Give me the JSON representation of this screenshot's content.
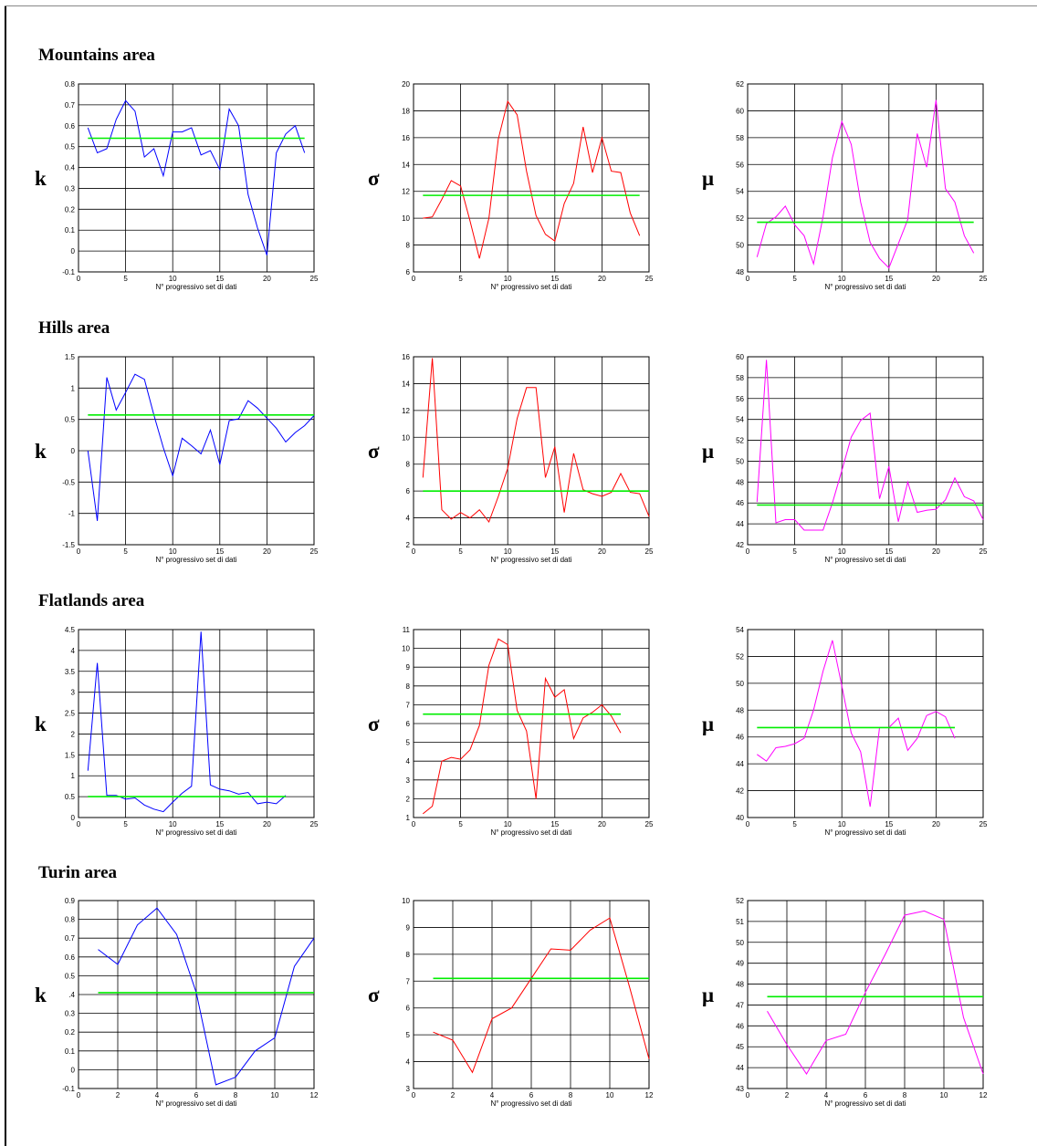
{
  "sections": [
    {
      "title": "Mountains area"
    },
    {
      "title": "Hills area"
    },
    {
      "title": "Flatlands area"
    },
    {
      "title": "Turin area"
    }
  ],
  "colors": {
    "k": "#0000ff",
    "sigma": "#ff0000",
    "mu": "#ff00ff",
    "mean": "#00ee00",
    "grid": "#000000"
  },
  "chart_data": [
    {
      "type": "line",
      "section": "Mountains area",
      "symbol": "k",
      "xlabel": "N° progressivo set di dati",
      "xlim": [
        0,
        25
      ],
      "ylim": [
        -0.1,
        0.8
      ],
      "xticks": [
        0,
        5,
        10,
        15,
        20,
        25
      ],
      "yticks": [
        -0.1,
        0,
        0.1,
        0.2,
        0.3,
        0.4,
        0.5,
        0.6,
        0.7,
        0.8
      ],
      "yticklabels": [
        "-0.1",
        "0",
        "0.1",
        "0.2",
        "0.3",
        "0.4",
        "0.5",
        "0.6",
        "0.7",
        "0.8"
      ],
      "x": [
        1,
        2,
        3,
        4,
        5,
        6,
        7,
        8,
        9,
        10,
        11,
        12,
        13,
        14,
        15,
        16,
        17,
        18,
        19,
        20,
        21,
        22,
        23,
        24
      ],
      "values": [
        0.59,
        0.47,
        0.49,
        0.63,
        0.72,
        0.67,
        0.45,
        0.49,
        0.36,
        0.57,
        0.57,
        0.59,
        0.46,
        0.48,
        0.39,
        0.68,
        0.6,
        0.27,
        0.11,
        -0.02,
        0.47,
        0.56,
        0.6,
        0.47
      ],
      "mean": {
        "value": 0.54,
        "x": [
          1,
          24
        ]
      }
    },
    {
      "type": "line",
      "section": "Mountains area",
      "symbol": "σ",
      "xlabel": "N° progressivo set di dati",
      "xlim": [
        0,
        25
      ],
      "ylim": [
        6,
        20
      ],
      "xticks": [
        0,
        5,
        10,
        15,
        20,
        25
      ],
      "yticks": [
        6,
        8,
        10,
        12,
        14,
        16,
        18,
        20
      ],
      "yticklabels": [
        "6",
        "8",
        "10",
        "12",
        "14",
        "16",
        "18",
        "20"
      ],
      "x": [
        1,
        2,
        3,
        4,
        5,
        6,
        7,
        8,
        9,
        10,
        11,
        12,
        13,
        14,
        15,
        16,
        17,
        18,
        19,
        20,
        21,
        22,
        23,
        24
      ],
      "values": [
        10,
        10.1,
        11.4,
        12.8,
        12.4,
        9.8,
        7,
        10,
        15.9,
        18.7,
        17.7,
        13.5,
        10.2,
        8.8,
        8.3,
        11.1,
        12.6,
        16.8,
        13.4,
        16,
        13.5,
        13.4,
        10.4,
        8.7
      ],
      "mean": {
        "value": 11.7,
        "x": [
          1,
          24
        ]
      }
    },
    {
      "type": "line",
      "section": "Mountains area",
      "symbol": "μ",
      "xlabel": "N° progressivo set di dati",
      "xlim": [
        0,
        25
      ],
      "ylim": [
        48,
        62
      ],
      "xticks": [
        0,
        5,
        10,
        15,
        20,
        25
      ],
      "yticks": [
        48,
        50,
        52,
        54,
        56,
        58,
        60,
        62
      ],
      "yticklabels": [
        "48",
        "50",
        "52",
        "54",
        "56",
        "58",
        "60",
        "62"
      ],
      "x": [
        1,
        2,
        3,
        4,
        5,
        6,
        7,
        8,
        9,
        10,
        11,
        12,
        13,
        14,
        15,
        16,
        17,
        18,
        19,
        20,
        21,
        22,
        23,
        24
      ],
      "values": [
        49.1,
        51.6,
        52.1,
        52.9,
        51.5,
        50.7,
        48.6,
        52.1,
        56.5,
        59.2,
        57.5,
        53.2,
        50.2,
        49,
        48.3,
        50.1,
        51.9,
        58.3,
        55.8,
        60.8,
        54.2,
        53.2,
        50.7,
        49.4
      ],
      "mean": {
        "value": 51.7,
        "x": [
          1,
          24
        ]
      }
    },
    {
      "type": "line",
      "section": "Hills area",
      "symbol": "k",
      "xlabel": "N° progressivo set di dati",
      "xlim": [
        0,
        25
      ],
      "ylim": [
        -1.5,
        1.5
      ],
      "xticks": [
        0,
        5,
        10,
        15,
        20,
        25
      ],
      "yticks": [
        -1.5,
        -1,
        -0.5,
        0,
        0.5,
        1,
        1.5
      ],
      "yticklabels": [
        "-1.5",
        "-1",
        "-0.5",
        "0",
        "0.5",
        "1",
        "1.5"
      ],
      "x": [
        1,
        2,
        3,
        4,
        5,
        6,
        7,
        8,
        9,
        10,
        11,
        12,
        13,
        14,
        15,
        16,
        17,
        18,
        19,
        20,
        21,
        22,
        23,
        24,
        25
      ],
      "values": [
        0,
        -1.12,
        1.17,
        0.65,
        0.93,
        1.22,
        1.14,
        0.57,
        0.05,
        -0.4,
        0.2,
        0.08,
        -0.05,
        0.33,
        -0.22,
        0.48,
        0.51,
        0.8,
        0.68,
        0.52,
        0.36,
        0.14,
        0.29,
        0.4,
        0.56
      ],
      "mean": {
        "value": 0.57,
        "x": [
          1,
          25
        ]
      }
    },
    {
      "type": "line",
      "section": "Hills area",
      "symbol": "σ",
      "xlabel": "N° progressivo set di dati",
      "xlim": [
        0,
        25
      ],
      "ylim": [
        2,
        16
      ],
      "xticks": [
        0,
        5,
        10,
        15,
        20,
        25
      ],
      "yticks": [
        2,
        4,
        6,
        8,
        10,
        12,
        14,
        16
      ],
      "yticklabels": [
        "2",
        "4",
        "6",
        "8",
        "10",
        "12",
        "14",
        "16"
      ],
      "x": [
        1,
        2,
        3,
        4,
        5,
        6,
        7,
        8,
        9,
        10,
        11,
        12,
        13,
        14,
        15,
        16,
        17,
        18,
        19,
        20,
        21,
        22,
        23,
        24,
        25
      ],
      "values": [
        7,
        15.9,
        4.6,
        3.9,
        4.4,
        4,
        4.6,
        3.7,
        5.6,
        7.7,
        11.4,
        13.7,
        13.7,
        7,
        9.3,
        4.4,
        8.8,
        6.1,
        5.8,
        5.6,
        5.9,
        7.3,
        5.9,
        5.8,
        4.1
      ],
      "mean": {
        "value": 6,
        "x": [
          1,
          25
        ]
      }
    },
    {
      "type": "line",
      "section": "Hills area",
      "symbol": "μ",
      "xlabel": "N° progressivo set di dati",
      "xlim": [
        0,
        25
      ],
      "ylim": [
        42,
        60
      ],
      "xticks": [
        0,
        5,
        10,
        15,
        20,
        25
      ],
      "yticks": [
        42,
        44,
        46,
        48,
        50,
        52,
        54,
        56,
        58,
        60
      ],
      "yticklabels": [
        "42",
        "44",
        "46",
        "48",
        "50",
        "52",
        "54",
        "56",
        "58",
        "60"
      ],
      "x": [
        1,
        2,
        3,
        4,
        5,
        6,
        7,
        8,
        9,
        10,
        11,
        12,
        13,
        14,
        15,
        16,
        17,
        18,
        19,
        20,
        21,
        22,
        23,
        24,
        25
      ],
      "values": [
        46.1,
        59.7,
        44.1,
        44.4,
        44.4,
        43.4,
        43.4,
        43.4,
        46,
        49.1,
        52.3,
        53.9,
        54.6,
        46.4,
        49.5,
        44.2,
        48,
        45.1,
        45.3,
        45.4,
        46.3,
        48.4,
        46.6,
        46.2,
        44.4
      ],
      "mean": {
        "value": 45.8,
        "x": [
          1,
          25
        ]
      }
    },
    {
      "type": "line",
      "section": "Flatlands area",
      "symbol": "k",
      "xlabel": "N° progressivo set di dati",
      "xlim": [
        0,
        25
      ],
      "ylim": [
        0,
        4.5
      ],
      "xticks": [
        0,
        5,
        10,
        15,
        20,
        25
      ],
      "yticks": [
        0,
        0.5,
        1,
        1.5,
        2,
        2.5,
        3,
        3.5,
        4,
        4.5
      ],
      "yticklabels": [
        "0",
        "0.5",
        "1",
        "1.5",
        "2",
        "2.5",
        "3",
        "3.5",
        "4",
        "4.5"
      ],
      "x": [
        1,
        2,
        3,
        4,
        5,
        6,
        7,
        8,
        9,
        10,
        11,
        12,
        13,
        14,
        15,
        16,
        17,
        18,
        19,
        20,
        21,
        22
      ],
      "values": [
        1.12,
        3.7,
        0.53,
        0.53,
        0.44,
        0.47,
        0.3,
        0.2,
        0.14,
        0.37,
        0.58,
        0.75,
        4.45,
        0.78,
        0.68,
        0.64,
        0.56,
        0.6,
        0.33,
        0.37,
        0.33,
        0.53
      ],
      "mean": {
        "value": 0.5,
        "x": [
          1,
          22
        ]
      }
    },
    {
      "type": "line",
      "section": "Flatlands area",
      "symbol": "σ",
      "xlabel": "N° progressivo set di dati",
      "xlim": [
        0,
        25
      ],
      "ylim": [
        1,
        11
      ],
      "xticks": [
        0,
        5,
        10,
        15,
        20,
        25
      ],
      "yticks": [
        1,
        2,
        3,
        4,
        5,
        6,
        7,
        8,
        9,
        10,
        11
      ],
      "yticklabels": [
        "1",
        "2",
        "3",
        "4",
        "5",
        "6",
        "7",
        "8",
        "9",
        "10",
        "11"
      ],
      "x": [
        1,
        2,
        3,
        4,
        5,
        6,
        7,
        8,
        9,
        10,
        11,
        12,
        13,
        14,
        15,
        16,
        17,
        18,
        19,
        20,
        21,
        22
      ],
      "values": [
        1.2,
        1.6,
        4,
        4.2,
        4.1,
        4.6,
        5.9,
        9.1,
        10.5,
        10.2,
        6.7,
        5.6,
        2,
        8.4,
        7.4,
        7.8,
        5.2,
        6.3,
        6.6,
        7,
        6.4,
        5.5
      ],
      "mean": {
        "value": 6.5,
        "x": [
          1,
          22
        ]
      }
    },
    {
      "type": "line",
      "section": "Flatlands area",
      "symbol": "μ",
      "xlabel": "N° progressivo set di dati",
      "xlim": [
        0,
        25
      ],
      "ylim": [
        40,
        54
      ],
      "xticks": [
        0,
        5,
        10,
        15,
        20,
        25
      ],
      "yticks": [
        40,
        42,
        44,
        46,
        48,
        50,
        52,
        54
      ],
      "yticklabels": [
        "40",
        "42",
        "44",
        "46",
        "48",
        "50",
        "52",
        "54"
      ],
      "x": [
        1,
        2,
        3,
        4,
        5,
        6,
        7,
        8,
        9,
        10,
        11,
        12,
        13,
        14,
        15,
        16,
        17,
        18,
        19,
        20,
        21,
        22
      ],
      "values": [
        44.7,
        44.2,
        45.2,
        45.3,
        45.5,
        45.9,
        48,
        50.9,
        53.2,
        49.8,
        46.3,
        44.9,
        40.8,
        46.7,
        46.7,
        47.4,
        45,
        45.9,
        47.6,
        47.9,
        47.5,
        45.9
      ],
      "mean": {
        "value": 46.7,
        "x": [
          1,
          22
        ]
      }
    },
    {
      "type": "line",
      "section": "Turin area",
      "symbol": "k",
      "xlabel": "N° progressivo set di dati",
      "xlim": [
        0,
        12
      ],
      "ylim": [
        -0.1,
        0.9
      ],
      "xticks": [
        0,
        2,
        4,
        6,
        8,
        10,
        12
      ],
      "yticks": [
        -0.1,
        0,
        0.1,
        0.2,
        0.3,
        0.4,
        0.5,
        0.6,
        0.7,
        0.8,
        0.9
      ],
      "yticklabels": [
        "-0.1",
        "0",
        "0.1",
        "0.2",
        "0.3",
        ".4",
        "0.5",
        "0.6",
        "0.7",
        "0.8",
        "0.9"
      ],
      "x": [
        1,
        2,
        3,
        4,
        5,
        6,
        7,
        8,
        9,
        10,
        11,
        12
      ],
      "values": [
        0.64,
        0.56,
        0.77,
        0.86,
        0.72,
        0.41,
        -0.08,
        -0.04,
        0.1,
        0.17,
        0.55,
        0.7
      ],
      "mean": {
        "value": 0.41,
        "x": [
          1,
          12
        ]
      }
    },
    {
      "type": "line",
      "section": "Turin area",
      "symbol": "σ",
      "xlabel": "N° progressivo set di dati",
      "xlim": [
        0,
        12
      ],
      "ylim": [
        3,
        10
      ],
      "xticks": [
        0,
        2,
        4,
        6,
        8,
        10,
        12
      ],
      "yticks": [
        3,
        4,
        5,
        6,
        7,
        8,
        9,
        10
      ],
      "yticklabels": [
        "3",
        "4",
        "5",
        "6",
        "7",
        "8",
        "9",
        "10"
      ],
      "x": [
        1,
        2,
        3,
        4,
        5,
        6,
        7,
        8,
        9,
        10,
        11,
        12
      ],
      "values": [
        5.1,
        4.8,
        3.6,
        5.6,
        6,
        7.1,
        8.2,
        8.15,
        8.9,
        9.35,
        6.8,
        4.1
      ],
      "mean": {
        "value": 7.1,
        "x": [
          1,
          12
        ]
      }
    },
    {
      "type": "line",
      "section": "Turin area",
      "symbol": "μ",
      "xlabel": "N° progressivo set di dati",
      "xlim": [
        0,
        12
      ],
      "ylim": [
        43,
        52
      ],
      "xticks": [
        0,
        2,
        4,
        6,
        8,
        10,
        12
      ],
      "yticks": [
        43,
        44,
        45,
        46,
        47,
        48,
        49,
        50,
        51,
        52
      ],
      "yticklabels": [
        "43",
        "44",
        "45",
        "46",
        "47",
        "48",
        "49",
        "50",
        "51",
        "52"
      ],
      "x": [
        1,
        2,
        3,
        4,
        5,
        6,
        7,
        8,
        9,
        10,
        11,
        12
      ],
      "values": [
        46.7,
        45.1,
        43.7,
        45.3,
        45.6,
        47.6,
        49.4,
        51.3,
        51.5,
        51.1,
        46.4,
        43.7
      ],
      "mean": {
        "value": 47.4,
        "x": [
          1,
          12
        ]
      }
    }
  ]
}
